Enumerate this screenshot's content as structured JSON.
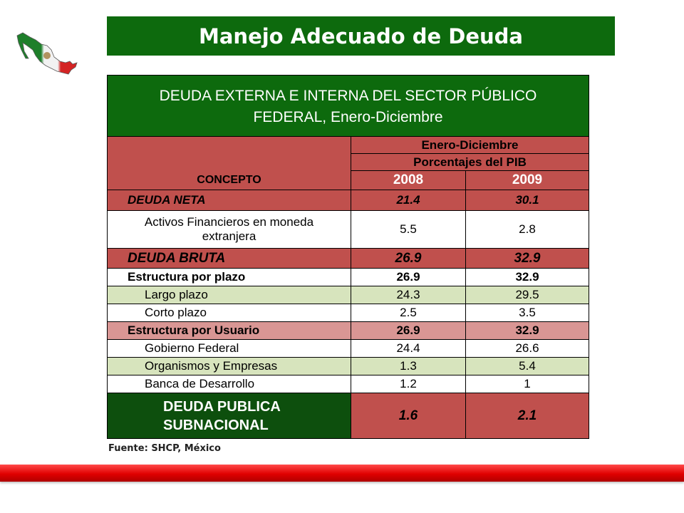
{
  "header": {
    "title": "Manejo Adecuado de Deuda"
  },
  "table": {
    "title_line1": "DEUDA EXTERNA E INTERNA DEL SECTOR PÚBLICO",
    "title_line2": "FEDERAL, Enero-Diciembre",
    "period": "Enero-Diciembre",
    "units": "Porcentajes del PIB",
    "concept_header": "CONCEPTO",
    "year1": "2008",
    "year2": "2009",
    "rows": [
      {
        "label": "DEUDA NETA",
        "v1": "21.4",
        "v2": "30.1"
      },
      {
        "label": "Activos Financieros en moneda extranjera",
        "v1": "5.5",
        "v2": "2.8"
      },
      {
        "label": "DEUDA BRUTA",
        "v1": "26.9",
        "v2": "32.9"
      },
      {
        "label": "Estructura por plazo",
        "v1": "26.9",
        "v2": "32.9"
      },
      {
        "label": "Largo plazo",
        "v1": "24.3",
        "v2": "29.5"
      },
      {
        "label": "Corto plazo",
        "v1": "2.5",
        "v2": "3.5"
      },
      {
        "label": "Estructura por Usuario",
        "v1": "26.9",
        "v2": "32.9"
      },
      {
        "label": "Gobierno Federal",
        "v1": "24.4",
        "v2": "26.6"
      },
      {
        "label": "Organismos y Empresas",
        "v1": "1.3",
        "v2": "5.4"
      },
      {
        "label": "Banca de Desarrollo",
        "v1": "1.2",
        "v2": "1"
      },
      {
        "label_line1": "DEUDA PUBLICA",
        "label_line2": "SUBNACIONAL",
        "v1": "1.6",
        "v2": "2.1"
      }
    ]
  },
  "source": "Fuente: SHCP, México",
  "colors": {
    "green": "#0d6a0d",
    "red": "#c0504d",
    "pink": "#d99694",
    "light_green": "#d7e4bd",
    "bar_red": "#e00000"
  },
  "icons": {
    "logo": "mexico-map-flag-icon"
  }
}
